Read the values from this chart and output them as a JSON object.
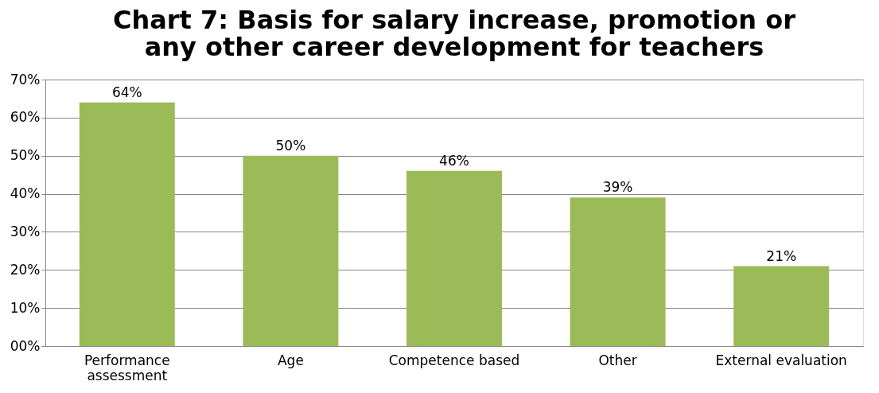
{
  "chart_data": {
    "type": "bar",
    "title": "Chart 7: Basis for salary increase, promotion or any other career development for teachers",
    "categories": [
      "Performance assessment",
      "Age",
      "Competence based",
      "Other",
      "External evaluation"
    ],
    "values": [
      64,
      50,
      46,
      39,
      21
    ],
    "value_labels": [
      "64%",
      "50%",
      "46%",
      "39%",
      "21%"
    ],
    "color": "#9bbb59",
    "ylim": [
      0,
      70
    ],
    "yticks": [
      {
        "value": 0,
        "label": "00%"
      },
      {
        "value": 10,
        "label": "10%"
      },
      {
        "value": 20,
        "label": "20%"
      },
      {
        "value": 30,
        "label": "30%"
      },
      {
        "value": 40,
        "label": "40%"
      },
      {
        "value": 50,
        "label": "50%"
      },
      {
        "value": 60,
        "label": "60%"
      },
      {
        "value": 70,
        "label": "70%"
      }
    ],
    "grid": "y"
  }
}
